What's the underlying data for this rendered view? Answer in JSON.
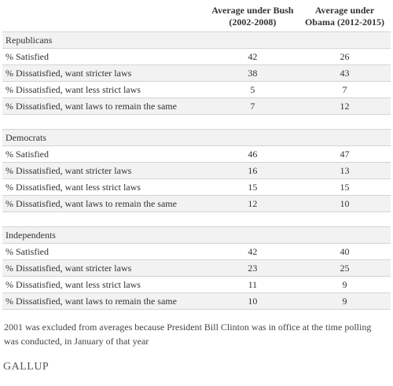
{
  "table": {
    "columns": [
      "Average under Bush (2002-2008)",
      "Average under Obama (2012-2015)"
    ],
    "sections": [
      {
        "title": "Republicans",
        "rows": [
          {
            "label": "% Satisfied",
            "values": [
              42,
              26
            ]
          },
          {
            "label": "% Dissatisfied, want stricter laws",
            "values": [
              38,
              43
            ]
          },
          {
            "label": "% Dissatisfied, want less strict laws",
            "values": [
              5,
              7
            ]
          },
          {
            "label": "% Dissatisfied, want laws to remain the same",
            "values": [
              7,
              12
            ]
          }
        ]
      },
      {
        "title": "Democrats",
        "rows": [
          {
            "label": "% Satisfied",
            "values": [
              46,
              47
            ]
          },
          {
            "label": "% Dissatisfied, want stricter laws",
            "values": [
              16,
              13
            ]
          },
          {
            "label": "% Dissatisfied, want less strict laws",
            "values": [
              15,
              15
            ]
          },
          {
            "label": "% Dissatisfied, want laws to remain the same",
            "values": [
              12,
              10
            ]
          }
        ]
      },
      {
        "title": "Independents",
        "rows": [
          {
            "label": "% Satisfied",
            "values": [
              42,
              40
            ]
          },
          {
            "label": "% Dissatisfied, want stricter laws",
            "values": [
              23,
              25
            ]
          },
          {
            "label": "% Dissatisfied, want less strict laws",
            "values": [
              11,
              9
            ]
          },
          {
            "label": "% Dissatisfied, want laws to remain the same",
            "values": [
              10,
              9
            ]
          }
        ]
      }
    ]
  },
  "footnote": "2001 was excluded from averages because President Bill Clinton was in office at the time polling was conducted, in January of that year",
  "source": "GALLUP"
}
